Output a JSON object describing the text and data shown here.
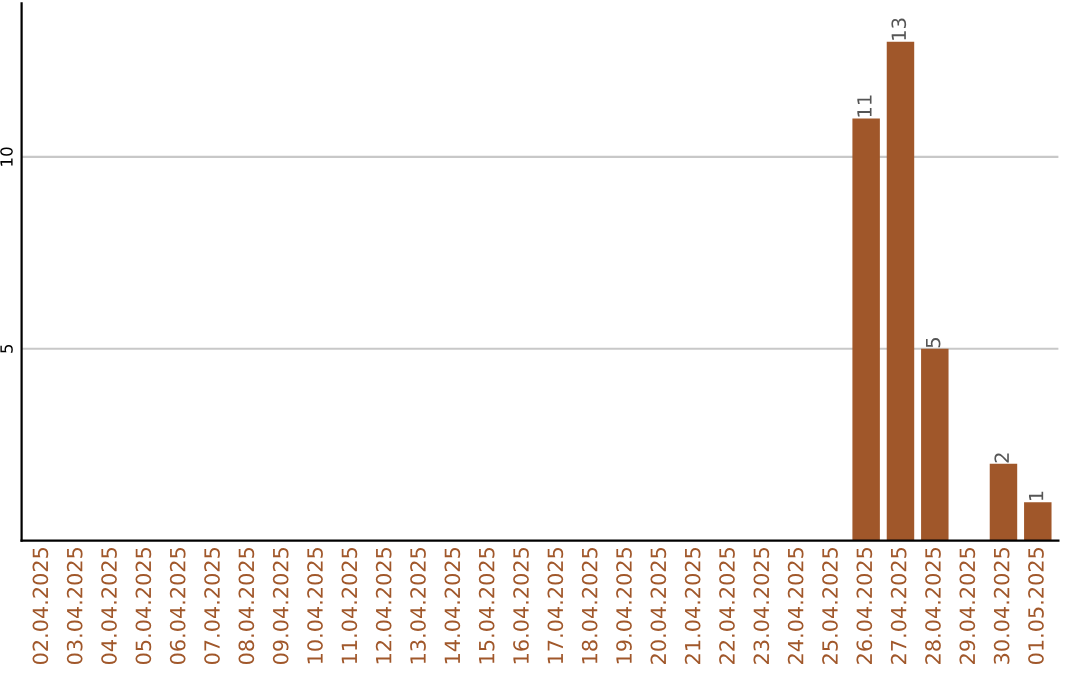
{
  "chart_data": {
    "type": "bar",
    "categories": [
      "02.04.2025",
      "03.04.2025",
      "04.04.2025",
      "05.04.2025",
      "06.04.2025",
      "07.04.2025",
      "08.04.2025",
      "09.04.2025",
      "10.04.2025",
      "11.04.2025",
      "12.04.2025",
      "13.04.2025",
      "14.04.2025",
      "15.04.2025",
      "16.04.2025",
      "17.04.2025",
      "18.04.2025",
      "19.04.2025",
      "20.04.2025",
      "21.04.2025",
      "22.04.2025",
      "23.04.2025",
      "24.04.2025",
      "25.04.2025",
      "26.04.2025",
      "27.04.2025",
      "28.04.2025",
      "29.04.2025",
      "30.04.2025",
      "01.05.2025"
    ],
    "values": [
      0,
      0,
      0,
      0,
      0,
      0,
      0,
      0,
      0,
      0,
      0,
      0,
      0,
      0,
      0,
      0,
      0,
      0,
      0,
      0,
      0,
      0,
      0,
      0,
      11,
      13,
      5,
      0,
      2,
      1
    ],
    "value_labels": [
      null,
      null,
      null,
      null,
      null,
      null,
      null,
      null,
      null,
      null,
      null,
      null,
      null,
      null,
      null,
      null,
      null,
      null,
      null,
      null,
      null,
      null,
      null,
      null,
      "11",
      "13",
      "5",
      null,
      "2",
      "1"
    ],
    "color": "#a0572a",
    "ylim": [
      0,
      14
    ],
    "yticks": [
      5,
      10
    ],
    "grid": "y"
  }
}
